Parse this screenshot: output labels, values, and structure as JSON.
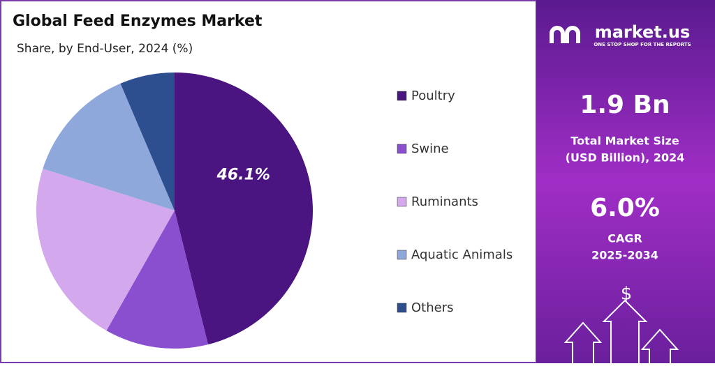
{
  "chart_data": {
    "type": "pie",
    "title": "Global Feed Enzymes Market",
    "subtitle": "Share, by End-User, 2024 (%)",
    "categories": [
      "Poultry",
      "Swine",
      "Ruminants",
      "Aquatic Animals",
      "Others"
    ],
    "values": [
      46.1,
      12.1,
      21.7,
      13.7,
      6.4
    ],
    "value_labels": [
      "46.1%",
      null,
      null,
      null,
      null
    ],
    "colors": [
      "#4a1580",
      "#8a4fcf",
      "#d4a8ec",
      "#8fa8dc",
      "#2e4f8f"
    ],
    "legend": "right"
  },
  "sidebar": {
    "brand": "market.us",
    "tagline": "ONE STOP SHOP FOR THE REPORTS",
    "market_size": "1.9 Bn",
    "market_size_label": [
      "Total Market Size",
      "(USD Billion), 2024"
    ],
    "cagr": "6.0%",
    "cagr_label": [
      "CAGR",
      "2025-2034"
    ],
    "icon": "$"
  }
}
